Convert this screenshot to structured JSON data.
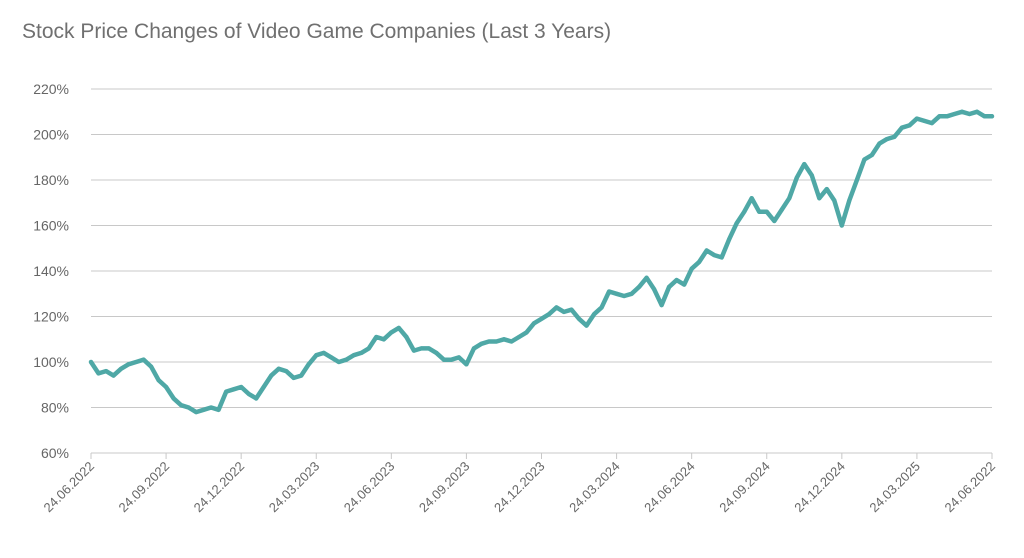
{
  "chart_data": {
    "type": "line",
    "title": "Stock Price Changes of Video Game Companies (Last 3 Years)",
    "xlabel": "",
    "ylabel": "",
    "ylim": [
      60,
      220
    ],
    "y_ticks": [
      60,
      80,
      100,
      120,
      140,
      160,
      180,
      200,
      220
    ],
    "y_tick_labels": [
      "60%",
      "80%",
      "100%",
      "120%",
      "140%",
      "160%",
      "180%",
      "200%",
      "220%"
    ],
    "x_tick_labels": [
      "24.06.2022",
      "24.09.2022",
      "24.12.2022",
      "24.03.2023",
      "24.06.2023",
      "24.09.2023",
      "24.12.2023",
      "24.03.2024",
      "24.06.2024",
      "24.09.2024",
      "24.12.2024",
      "24.03.2025",
      "24.06.2022"
    ],
    "grid": true,
    "legend": "none",
    "colors": {
      "line": "#4FA8A6",
      "grid": "#c8c8c8",
      "text": "#666666",
      "title": "#707070"
    },
    "series": [
      {
        "x": [
          0.0,
          0.1,
          0.2,
          0.3,
          0.4,
          0.5,
          0.6,
          0.7,
          0.8,
          0.9,
          1.0,
          1.1,
          1.2,
          1.3,
          1.4,
          1.5,
          1.6,
          1.7,
          1.8,
          1.9,
          2.0,
          2.1,
          2.2,
          2.3,
          2.4,
          2.5,
          2.6,
          2.7,
          2.8,
          2.9,
          3.0,
          3.1,
          3.2,
          3.3,
          3.4,
          3.5,
          3.6,
          3.7,
          3.8,
          3.9,
          4.0,
          4.1,
          4.2,
          4.3,
          4.4,
          4.5,
          4.6,
          4.7,
          4.8,
          4.9,
          5.0,
          5.1,
          5.2,
          5.3,
          5.4,
          5.5,
          5.6,
          5.7,
          5.8,
          5.9,
          6.0,
          6.1,
          6.2,
          6.3,
          6.4,
          6.5,
          6.6,
          6.7,
          6.8,
          6.9,
          7.0,
          7.1,
          7.2,
          7.3,
          7.4,
          7.5,
          7.6,
          7.7,
          7.8,
          7.9,
          8.0,
          8.1,
          8.2,
          8.3,
          8.4,
          8.5,
          8.6,
          8.7,
          8.8,
          8.9,
          9.0,
          9.1,
          9.2,
          9.3,
          9.4,
          9.5,
          9.6,
          9.7,
          9.8,
          9.9,
          10.0,
          10.1,
          10.2,
          10.3,
          10.4,
          10.5,
          10.6,
          10.7,
          10.8,
          10.9,
          11.0,
          11.1,
          11.2,
          11.3,
          11.4,
          11.5,
          11.6,
          11.7,
          11.8,
          11.9,
          12.0
        ],
        "y": [
          100,
          95,
          96,
          94,
          97,
          99,
          100,
          101,
          98,
          92,
          89,
          84,
          81,
          80,
          78,
          79,
          80,
          79,
          87,
          88,
          89,
          86,
          84,
          89,
          94,
          97,
          96,
          93,
          94,
          99,
          103,
          104,
          102,
          100,
          101,
          103,
          104,
          106,
          111,
          110,
          113,
          115,
          111,
          105,
          106,
          106,
          104,
          101,
          101,
          102,
          99,
          106,
          108,
          109,
          109,
          110,
          109,
          111,
          113,
          117,
          119,
          121,
          124,
          122,
          123,
          119,
          116,
          121,
          124,
          131,
          130,
          129,
          130,
          133,
          137,
          132,
          125,
          133,
          136,
          134,
          141,
          144,
          149,
          147,
          146,
          154,
          161,
          166,
          172,
          166,
          166,
          162,
          167,
          172,
          181,
          187,
          182,
          172,
          176,
          171,
          160,
          171,
          180,
          189,
          191,
          196,
          198,
          199,
          203,
          204,
          207,
          206,
          205,
          208,
          208,
          209,
          210,
          209,
          210,
          208,
          208
        ]
      }
    ]
  }
}
